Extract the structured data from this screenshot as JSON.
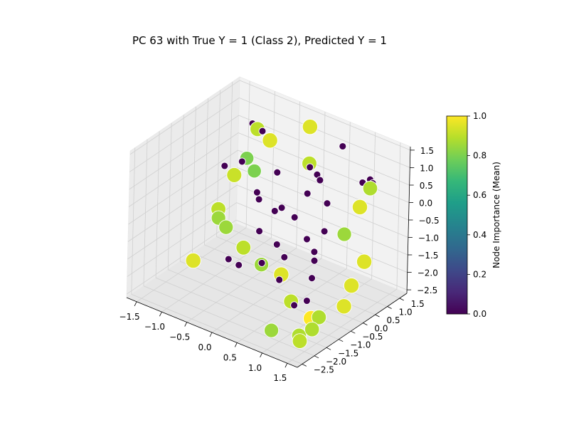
{
  "chart_data": {
    "type": "scatter",
    "title": "PC 63 with True Y = 1 (Class 2), Predicted Y = 1",
    "projection": "3d",
    "grid": true,
    "x_axis": {
      "ticks": [
        -1.5,
        -1.0,
        -0.5,
        0.0,
        0.5,
        1.0,
        1.5
      ],
      "tick_labels": [
        "−1.5",
        "−1.0",
        "−0.5",
        "0.0",
        "0.5",
        "1.0",
        "1.5"
      ],
      "range": [
        -1.7,
        1.7
      ]
    },
    "y_axis": {
      "ticks": [
        -2.5,
        -2.0,
        -1.5,
        -1.0,
        -0.5,
        0.0,
        0.5,
        1.0,
        1.5
      ],
      "tick_labels": [
        "−2.5",
        "−2.0",
        "−1.5",
        "−1.0",
        "−0.5",
        "0.0",
        "0.5",
        "1.0",
        "1.5"
      ],
      "range": [
        -2.7,
        1.8
      ]
    },
    "z_axis": {
      "ticks": [
        -2.5,
        -2.0,
        -1.5,
        -1.0,
        -0.5,
        0.0,
        0.5,
        1.0,
        1.5
      ],
      "tick_labels": [
        "−2.5",
        "−2.0",
        "−1.5",
        "−1.0",
        "−0.5",
        "0.0",
        "0.5",
        "1.0",
        "1.5"
      ],
      "range": [
        -2.6,
        1.6
      ]
    },
    "colorbar": {
      "label": "Node Importance (Mean)",
      "colormap": "viridis",
      "range": [
        0.0,
        1.0
      ],
      "ticks": [
        0.0,
        0.2,
        0.4,
        0.6,
        0.8,
        1.0
      ],
      "tick_labels": [
        "0.0",
        "0.2",
        "0.4",
        "0.6",
        "0.8",
        "1.0"
      ],
      "colors": [
        "#440154",
        "#482878",
        "#3e4989",
        "#31688e",
        "#26828e",
        "#1f9e89",
        "#35b779",
        "#6ece58",
        "#b5de2b",
        "#fde725"
      ]
    },
    "points": [
      {
        "x": -0.9,
        "y": 0.9,
        "z": 1.0,
        "importance": 0.9
      },
      {
        "x": -0.6,
        "y": 0.8,
        "z": 0.9,
        "importance": 0.95
      },
      {
        "x": -0.1,
        "y": 1.4,
        "z": 1.3,
        "importance": 0.95
      },
      {
        "x": 0.0,
        "y": 1.2,
        "z": 0.4,
        "importance": 0.9
      },
      {
        "x": -1.0,
        "y": 0.7,
        "z": 0.2,
        "importance": 0.8
      },
      {
        "x": -0.8,
        "y": 0.6,
        "z": 0.0,
        "importance": 0.8
      },
      {
        "x": -1.1,
        "y": 0.4,
        "z": -0.2,
        "importance": 0.92
      },
      {
        "x": -1.3,
        "y": 0.2,
        "z": -1.2,
        "importance": 0.9
      },
      {
        "x": -1.2,
        "y": 0.0,
        "z": -1.3,
        "importance": 0.85
      },
      {
        "x": -1.0,
        "y": -0.1,
        "z": -1.4,
        "importance": 0.85
      },
      {
        "x": -0.6,
        "y": -0.2,
        "z": -1.7,
        "importance": 0.9
      },
      {
        "x": -1.3,
        "y": -0.8,
        "z": -2.2,
        "importance": 0.95
      },
      {
        "x": 0.0,
        "y": -0.7,
        "z": -1.6,
        "importance": 0.85
      },
      {
        "x": 0.3,
        "y": -0.5,
        "z": -1.8,
        "importance": 0.95
      },
      {
        "x": 0.6,
        "y": -0.7,
        "z": -2.3,
        "importance": 0.9
      },
      {
        "x": 1.1,
        "y": -0.9,
        "z": -2.4,
        "importance": 1.0
      },
      {
        "x": 1.3,
        "y": -1.0,
        "z": -2.2,
        "importance": 0.88
      },
      {
        "x": 0.7,
        "y": -1.7,
        "z": -2.6,
        "importance": 0.85
      },
      {
        "x": 1.2,
        "y": -1.6,
        "z": -2.5,
        "importance": 0.88
      },
      {
        "x": 1.5,
        "y": -1.7,
        "z": -2.1,
        "importance": 0.88
      },
      {
        "x": 1.5,
        "y": -2.2,
        "z": -2.2,
        "importance": 0.9
      },
      {
        "x": 1.4,
        "y": 0.8,
        "z": 0.7,
        "importance": 0.88
      },
      {
        "x": 1.3,
        "y": 0.6,
        "z": 0.2,
        "importance": 0.95
      },
      {
        "x": 1.1,
        "y": 0.4,
        "z": -0.6,
        "importance": 0.85
      },
      {
        "x": 1.6,
        "y": 0.2,
        "z": -1.0,
        "importance": 0.95
      },
      {
        "x": 1.5,
        "y": -0.1,
        "z": -1.6,
        "importance": 0.95
      },
      {
        "x": 1.6,
        "y": -0.6,
        "z": -1.9,
        "importance": 0.95
      },
      {
        "x": -1.0,
        "y": 0.9,
        "z": 1.1,
        "importance": 0.0
      },
      {
        "x": -0.9,
        "y": 1.0,
        "z": 1.0,
        "importance": 0.0
      },
      {
        "x": -0.8,
        "y": 0.9,
        "z": 1.0,
        "importance": 0.0
      },
      {
        "x": 1.3,
        "y": 1.0,
        "z": 0.8,
        "importance": 0.0
      },
      {
        "x": 1.4,
        "y": 0.9,
        "z": 0.8,
        "importance": 0.0
      },
      {
        "x": 1.2,
        "y": 0.9,
        "z": 0.7,
        "importance": 0.0
      },
      {
        "x": 0.6,
        "y": 1.3,
        "z": 1.2,
        "importance": 0.0
      },
      {
        "x": 0.2,
        "y": 0.8,
        "z": 0.6,
        "importance": 0.0
      },
      {
        "x": 0.4,
        "y": 0.3,
        "z": 0.2,
        "importance": 0.0
      },
      {
        "x": -0.3,
        "y": 0.5,
        "z": 0.3,
        "importance": 0.0
      },
      {
        "x": -1.2,
        "y": 0.2,
        "z": 0.1,
        "importance": 0.0
      },
      {
        "x": -1.0,
        "y": 0.5,
        "z": 0.2,
        "importance": 0.0
      },
      {
        "x": -0.5,
        "y": 0.1,
        "z": -0.2,
        "importance": 0.0
      },
      {
        "x": 0.0,
        "y": -0.2,
        "z": -0.3,
        "importance": 0.0
      },
      {
        "x": 0.3,
        "y": 0.0,
        "z": -0.4,
        "importance": 0.0
      },
      {
        "x": 0.8,
        "y": 0.2,
        "z": -0.6,
        "importance": 0.0
      },
      {
        "x": 0.6,
        "y": -0.1,
        "z": -0.8,
        "importance": 0.0
      },
      {
        "x": 0.2,
        "y": -0.5,
        "z": -1.0,
        "importance": 0.0
      },
      {
        "x": -0.2,
        "y": -0.4,
        "z": -0.9,
        "importance": 0.0
      },
      {
        "x": 0.4,
        "y": -0.6,
        "z": -1.2,
        "importance": 0.0
      },
      {
        "x": 0.9,
        "y": -0.4,
        "z": -1.1,
        "importance": 0.0
      },
      {
        "x": 1.0,
        "y": -0.7,
        "z": -1.4,
        "importance": 0.0
      },
      {
        "x": 0.5,
        "y": -1.0,
        "z": -1.6,
        "importance": 0.0
      },
      {
        "x": -0.4,
        "y": -0.8,
        "z": -1.8,
        "importance": 0.0
      },
      {
        "x": -0.7,
        "y": -0.6,
        "z": -1.9,
        "importance": 0.0
      },
      {
        "x": 0.9,
        "y": -1.2,
        "z": -2.0,
        "importance": 0.0
      },
      {
        "x": 1.1,
        "y": -1.1,
        "z": -1.8,
        "importance": 0.0
      },
      {
        "x": 0.7,
        "y": 0.5,
        "z": 0.0,
        "importance": 0.0
      },
      {
        "x": -0.1,
        "y": 0.3,
        "z": -0.5,
        "importance": 0.0
      },
      {
        "x": 0.5,
        "y": 0.6,
        "z": 0.5,
        "importance": 0.0
      },
      {
        "x": 0.1,
        "y": -0.9,
        "z": -1.4,
        "importance": 0.0
      },
      {
        "x": 0.8,
        "y": -0.2,
        "z": -1.0,
        "importance": 0.0
      },
      {
        "x": -0.6,
        "y": 0.4,
        "z": -0.6,
        "importance": 0.0
      },
      {
        "x": 0.3,
        "y": 0.9,
        "z": 0.4,
        "importance": 0.0
      }
    ]
  }
}
